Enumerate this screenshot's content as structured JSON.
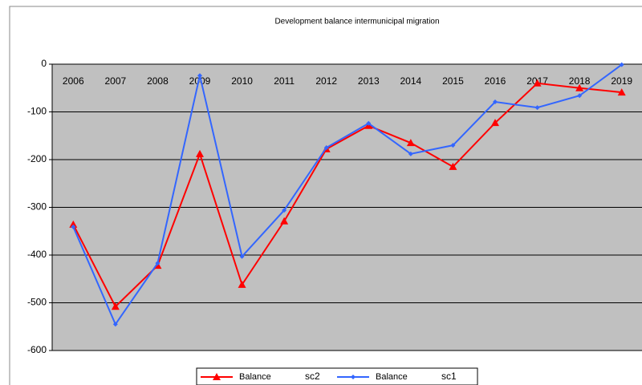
{
  "chart_data": {
    "type": "line",
    "title": "Development balance intermunicipal migration",
    "categories": [
      "2006",
      "2007",
      "2008",
      "2009",
      "2010",
      "2011",
      "2012",
      "2013",
      "2014",
      "2015",
      "2016",
      "2017",
      "2018",
      "2019"
    ],
    "series": [
      {
        "name": "Balance",
        "scenario": "sc2",
        "color": "#ff0000",
        "marker": "triangle",
        "values": [
          -336,
          -508,
          -422,
          -188,
          -462,
          -329,
          -178,
          -129,
          -165,
          -215,
          -123,
          -40,
          -50,
          -59
        ]
      },
      {
        "name": "Balance",
        "scenario": "sc1",
        "color": "#3366ff",
        "marker": "diamond",
        "values": [
          -341,
          -545,
          -417,
          -24,
          -403,
          -306,
          -175,
          -124,
          -188,
          -170,
          -79,
          -91,
          -66,
          -1
        ]
      }
    ],
    "ylim": [
      -600,
      0
    ],
    "yticks": [
      0,
      -100,
      -200,
      -300,
      -400,
      -500,
      -600
    ],
    "grid": true
  }
}
